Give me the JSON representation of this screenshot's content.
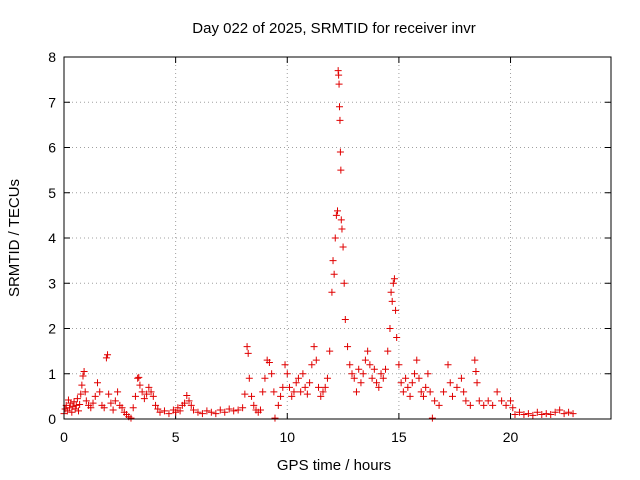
{
  "chart_data": {
    "type": "scatter",
    "title": "Day 022 of 2025, SRMTID for receiver invr",
    "xlabel": "GPS time / hours",
    "ylabel": "SRMTID / TECUs",
    "xlim": [
      0,
      24.5
    ],
    "ylim": [
      0,
      8
    ],
    "xticks": [
      0,
      5,
      10,
      15,
      20
    ],
    "yticks": [
      0,
      1,
      2,
      3,
      4,
      5,
      6,
      7,
      8
    ],
    "grid": true,
    "marker": "+",
    "series": [
      {
        "name": "SRMTID",
        "color": "#e00000",
        "points": [
          [
            0.0,
            0.12
          ],
          [
            0.05,
            0.22
          ],
          [
            0.1,
            0.3
          ],
          [
            0.15,
            0.18
          ],
          [
            0.2,
            0.42
          ],
          [
            0.25,
            0.25
          ],
          [
            0.3,
            0.35
          ],
          [
            0.35,
            0.15
          ],
          [
            0.4,
            0.28
          ],
          [
            0.45,
            0.38
          ],
          [
            0.5,
            0.22
          ],
          [
            0.55,
            0.3
          ],
          [
            0.6,
            0.45
          ],
          [
            0.65,
            0.18
          ],
          [
            0.7,
            0.32
          ],
          [
            0.75,
            0.55
          ],
          [
            0.8,
            0.75
          ],
          [
            0.85,
            0.95
          ],
          [
            0.9,
            1.05
          ],
          [
            0.95,
            0.6
          ],
          [
            1.0,
            0.4
          ],
          [
            1.1,
            0.3
          ],
          [
            1.2,
            0.25
          ],
          [
            1.3,
            0.35
          ],
          [
            1.4,
            0.5
          ],
          [
            1.5,
            0.8
          ],
          [
            1.6,
            0.6
          ],
          [
            1.7,
            0.3
          ],
          [
            1.8,
            0.25
          ],
          [
            1.9,
            1.35
          ],
          [
            1.95,
            1.42
          ],
          [
            2.0,
            0.55
          ],
          [
            2.1,
            0.35
          ],
          [
            2.2,
            0.2
          ],
          [
            2.3,
            0.4
          ],
          [
            2.4,
            0.6
          ],
          [
            2.5,
            0.3
          ],
          [
            2.6,
            0.25
          ],
          [
            2.7,
            0.15
          ],
          [
            2.8,
            0.1
          ],
          [
            2.9,
            0.05
          ],
          [
            3.0,
            0.02
          ],
          [
            3.1,
            0.25
          ],
          [
            3.2,
            0.5
          ],
          [
            3.3,
            0.9
          ],
          [
            3.35,
            0.92
          ],
          [
            3.4,
            0.75
          ],
          [
            3.5,
            0.6
          ],
          [
            3.6,
            0.45
          ],
          [
            3.7,
            0.55
          ],
          [
            3.8,
            0.7
          ],
          [
            3.9,
            0.6
          ],
          [
            4.0,
            0.5
          ],
          [
            4.1,
            0.3
          ],
          [
            4.2,
            0.22
          ],
          [
            4.3,
            0.15
          ],
          [
            4.5,
            0.18
          ],
          [
            4.7,
            0.12
          ],
          [
            4.9,
            0.2
          ],
          [
            5.0,
            0.15
          ],
          [
            5.1,
            0.25
          ],
          [
            5.2,
            0.18
          ],
          [
            5.3,
            0.3
          ],
          [
            5.4,
            0.35
          ],
          [
            5.5,
            0.52
          ],
          [
            5.6,
            0.4
          ],
          [
            5.7,
            0.3
          ],
          [
            5.8,
            0.2
          ],
          [
            6.0,
            0.15
          ],
          [
            6.2,
            0.12
          ],
          [
            6.4,
            0.18
          ],
          [
            6.6,
            0.15
          ],
          [
            6.8,
            0.12
          ],
          [
            7.0,
            0.2
          ],
          [
            7.2,
            0.15
          ],
          [
            7.4,
            0.22
          ],
          [
            7.6,
            0.18
          ],
          [
            7.8,
            0.2
          ],
          [
            8.0,
            0.25
          ],
          [
            8.1,
            0.55
          ],
          [
            8.2,
            1.6
          ],
          [
            8.25,
            1.45
          ],
          [
            8.3,
            0.9
          ],
          [
            8.4,
            0.5
          ],
          [
            8.5,
            0.3
          ],
          [
            8.6,
            0.2
          ],
          [
            8.7,
            0.15
          ],
          [
            8.8,
            0.2
          ],
          [
            8.9,
            0.6
          ],
          [
            9.0,
            0.9
          ],
          [
            9.1,
            1.3
          ],
          [
            9.2,
            1.25
          ],
          [
            9.3,
            1.0
          ],
          [
            9.4,
            0.6
          ],
          [
            9.45,
            0.02
          ],
          [
            9.6,
            0.3
          ],
          [
            9.7,
            0.5
          ],
          [
            9.8,
            0.7
          ],
          [
            9.9,
            1.2
          ],
          [
            10.0,
            1.0
          ],
          [
            10.1,
            0.7
          ],
          [
            10.2,
            0.5
          ],
          [
            10.3,
            0.6
          ],
          [
            10.4,
            0.8
          ],
          [
            10.5,
            0.9
          ],
          [
            10.6,
            0.6
          ],
          [
            10.7,
            1.0
          ],
          [
            10.8,
            0.7
          ],
          [
            10.9,
            0.55
          ],
          [
            11.0,
            0.8
          ],
          [
            11.1,
            1.2
          ],
          [
            11.2,
            1.6
          ],
          [
            11.3,
            1.3
          ],
          [
            11.4,
            0.7
          ],
          [
            11.5,
            0.5
          ],
          [
            11.6,
            0.6
          ],
          [
            11.7,
            0.7
          ],
          [
            11.8,
            0.9
          ],
          [
            11.9,
            1.5
          ],
          [
            12.0,
            2.8
          ],
          [
            12.05,
            3.5
          ],
          [
            12.1,
            3.2
          ],
          [
            12.15,
            4.0
          ],
          [
            12.2,
            4.5
          ],
          [
            12.25,
            4.6
          ],
          [
            12.28,
            7.7
          ],
          [
            12.3,
            7.6
          ],
          [
            12.32,
            7.4
          ],
          [
            12.34,
            6.9
          ],
          [
            12.36,
            6.6
          ],
          [
            12.38,
            5.9
          ],
          [
            12.4,
            5.5
          ],
          [
            12.42,
            4.4
          ],
          [
            12.45,
            4.2
          ],
          [
            12.5,
            3.8
          ],
          [
            12.55,
            3.0
          ],
          [
            12.6,
            2.2
          ],
          [
            12.7,
            1.6
          ],
          [
            12.8,
            1.2
          ],
          [
            12.9,
            1.0
          ],
          [
            13.0,
            0.9
          ],
          [
            13.1,
            0.6
          ],
          [
            13.2,
            1.1
          ],
          [
            13.3,
            0.8
          ],
          [
            13.4,
            1.0
          ],
          [
            13.5,
            1.3
          ],
          [
            13.6,
            1.5
          ],
          [
            13.7,
            1.2
          ],
          [
            13.8,
            0.9
          ],
          [
            13.9,
            1.1
          ],
          [
            14.0,
            0.8
          ],
          [
            14.1,
            0.7
          ],
          [
            14.2,
            1.0
          ],
          [
            14.3,
            0.9
          ],
          [
            14.4,
            1.1
          ],
          [
            14.5,
            1.5
          ],
          [
            14.6,
            2.0
          ],
          [
            14.65,
            2.8
          ],
          [
            14.7,
            2.6
          ],
          [
            14.75,
            3.0
          ],
          [
            14.8,
            3.1
          ],
          [
            14.85,
            2.4
          ],
          [
            14.9,
            1.8
          ],
          [
            15.0,
            1.2
          ],
          [
            15.1,
            0.8
          ],
          [
            15.2,
            0.6
          ],
          [
            15.3,
            0.9
          ],
          [
            15.4,
            0.7
          ],
          [
            15.5,
            0.5
          ],
          [
            15.6,
            0.8
          ],
          [
            15.7,
            1.0
          ],
          [
            15.8,
            1.3
          ],
          [
            15.9,
            0.9
          ],
          [
            16.0,
            0.6
          ],
          [
            16.1,
            0.5
          ],
          [
            16.2,
            0.7
          ],
          [
            16.3,
            1.0
          ],
          [
            16.4,
            0.6
          ],
          [
            16.5,
            0.02
          ],
          [
            16.6,
            0.4
          ],
          [
            16.8,
            0.3
          ],
          [
            17.0,
            0.6
          ],
          [
            17.2,
            1.2
          ],
          [
            17.3,
            0.8
          ],
          [
            17.4,
            0.5
          ],
          [
            17.6,
            0.7
          ],
          [
            17.8,
            0.9
          ],
          [
            17.9,
            0.6
          ],
          [
            18.0,
            0.4
          ],
          [
            18.2,
            0.3
          ],
          [
            18.4,
            1.3
          ],
          [
            18.45,
            1.05
          ],
          [
            18.5,
            0.8
          ],
          [
            18.6,
            0.4
          ],
          [
            18.8,
            0.3
          ],
          [
            19.0,
            0.4
          ],
          [
            19.2,
            0.3
          ],
          [
            19.4,
            0.6
          ],
          [
            19.6,
            0.4
          ],
          [
            19.8,
            0.3
          ],
          [
            20.0,
            0.4
          ],
          [
            20.1,
            0.25
          ],
          [
            20.2,
            0.1
          ],
          [
            20.4,
            0.15
          ],
          [
            20.6,
            0.1
          ],
          [
            20.8,
            0.12
          ],
          [
            21.0,
            0.08
          ],
          [
            21.2,
            0.15
          ],
          [
            21.4,
            0.1
          ],
          [
            21.6,
            0.12
          ],
          [
            21.8,
            0.1
          ],
          [
            22.0,
            0.15
          ],
          [
            22.2,
            0.2
          ],
          [
            22.4,
            0.12
          ],
          [
            22.6,
            0.15
          ],
          [
            22.8,
            0.12
          ]
        ]
      }
    ]
  }
}
